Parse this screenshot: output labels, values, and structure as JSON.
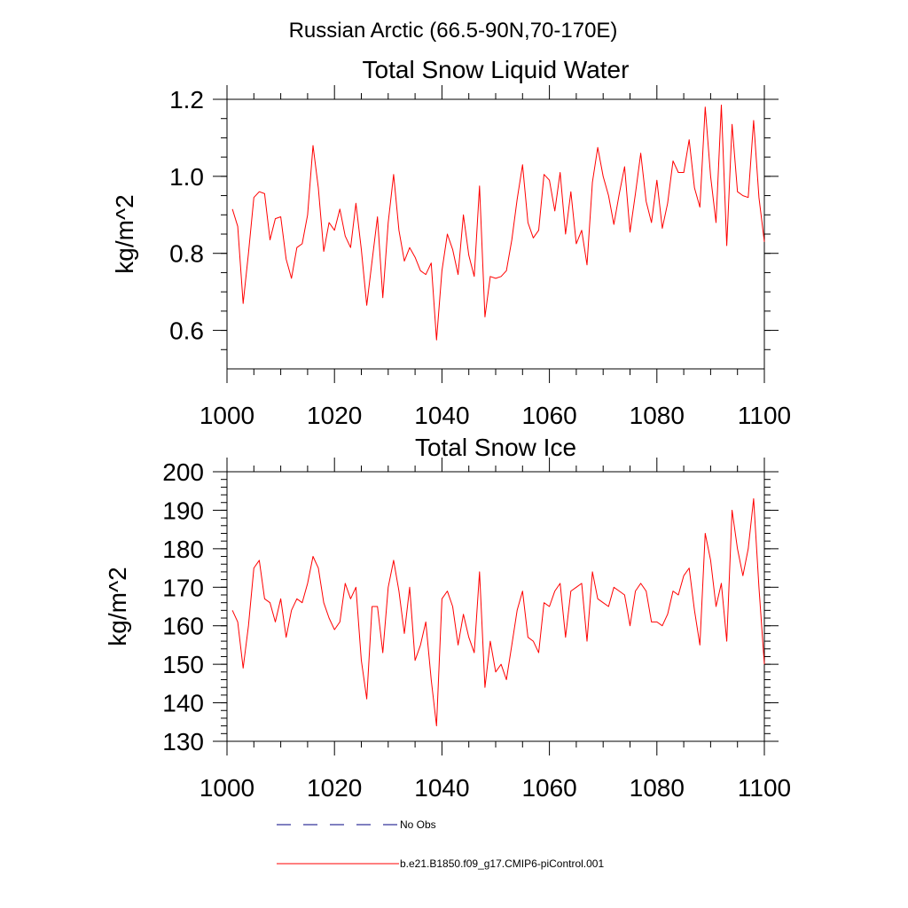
{
  "page": {
    "title": "Russian Arctic (66.5-90N,70-170E)"
  },
  "colors": {
    "series": "#ff0000",
    "obs": "#000080",
    "axes": "#000000"
  },
  "chart_data": [
    {
      "type": "line",
      "title": "Total Snow Liquid Water",
      "xlabel": "",
      "ylabel": "kg/m^2",
      "xlim": [
        1000,
        1100
      ],
      "ylim": [
        0.5,
        1.2
      ],
      "xticks": [
        1000,
        1020,
        1040,
        1060,
        1080,
        1100
      ],
      "xtick_labels": [
        "1000",
        "1020",
        "1040",
        "1060",
        "1080",
        "1100"
      ],
      "yticks": [
        0.6,
        0.8,
        1.0,
        1.2
      ],
      "ytick_labels": [
        "0.6",
        "0.8",
        "1.0",
        "1.2"
      ],
      "grid": false,
      "x": [
        1001,
        1002,
        1003,
        1004,
        1005,
        1006,
        1007,
        1008,
        1009,
        1010,
        1011,
        1012,
        1013,
        1014,
        1015,
        1016,
        1017,
        1018,
        1019,
        1020,
        1021,
        1022,
        1023,
        1024,
        1025,
        1026,
        1027,
        1028,
        1029,
        1030,
        1031,
        1032,
        1033,
        1034,
        1035,
        1036,
        1037,
        1038,
        1039,
        1040,
        1041,
        1042,
        1043,
        1044,
        1045,
        1046,
        1047,
        1048,
        1049,
        1050,
        1051,
        1052,
        1053,
        1054,
        1055,
        1056,
        1057,
        1058,
        1059,
        1060,
        1061,
        1062,
        1063,
        1064,
        1065,
        1066,
        1067,
        1068,
        1069,
        1070,
        1071,
        1072,
        1073,
        1074,
        1075,
        1076,
        1077,
        1078,
        1079,
        1080,
        1081,
        1082,
        1083,
        1084,
        1085,
        1086,
        1087,
        1088,
        1089,
        1090,
        1091,
        1092,
        1093,
        1094,
        1095,
        1096,
        1097,
        1098,
        1099,
        1100
      ],
      "series": [
        {
          "name": "b.e21.B1850.f09_g17.CMIP6-piControl.001",
          "values": [
            0.915,
            0.87,
            0.67,
            0.8,
            0.945,
            0.96,
            0.955,
            0.835,
            0.89,
            0.895,
            0.785,
            0.735,
            0.815,
            0.825,
            0.9,
            1.08,
            0.97,
            0.805,
            0.88,
            0.86,
            0.915,
            0.845,
            0.815,
            0.93,
            0.81,
            0.665,
            0.78,
            0.895,
            0.685,
            0.88,
            1.005,
            0.86,
            0.78,
            0.815,
            0.79,
            0.755,
            0.745,
            0.775,
            0.575,
            0.755,
            0.85,
            0.81,
            0.745,
            0.9,
            0.795,
            0.74,
            0.975,
            0.635,
            0.74,
            0.735,
            0.74,
            0.755,
            0.835,
            0.94,
            1.03,
            0.88,
            0.84,
            0.86,
            1.005,
            0.99,
            0.91,
            1.01,
            0.85,
            0.96,
            0.825,
            0.86,
            0.77,
            0.985,
            1.075,
            1.0,
            0.95,
            0.875,
            0.955,
            1.025,
            0.855,
            0.955,
            1.06,
            0.935,
            0.88,
            0.99,
            0.865,
            0.93,
            1.04,
            1.01,
            1.01,
            1.095,
            0.97,
            0.92,
            1.18,
            1.0,
            0.88,
            1.185,
            0.82,
            1.135,
            0.96,
            0.95,
            0.945,
            1.145,
            0.945,
            0.83
          ]
        }
      ]
    },
    {
      "type": "line",
      "title": "Total Snow Ice",
      "xlabel": "",
      "ylabel": "kg/m^2",
      "xlim": [
        1000,
        1100
      ],
      "ylim": [
        130,
        200
      ],
      "xticks": [
        1000,
        1020,
        1040,
        1060,
        1080,
        1100
      ],
      "xtick_labels": [
        "1000",
        "1020",
        "1040",
        "1060",
        "1080",
        "1100"
      ],
      "yticks": [
        130,
        140,
        150,
        160,
        170,
        180,
        190,
        200
      ],
      "ytick_labels": [
        "130",
        "140",
        "150",
        "160",
        "170",
        "180",
        "190",
        "200"
      ],
      "grid": false,
      "x": [
        1001,
        1002,
        1003,
        1004,
        1005,
        1006,
        1007,
        1008,
        1009,
        1010,
        1011,
        1012,
        1013,
        1014,
        1015,
        1016,
        1017,
        1018,
        1019,
        1020,
        1021,
        1022,
        1023,
        1024,
        1025,
        1026,
        1027,
        1028,
        1029,
        1030,
        1031,
        1032,
        1033,
        1034,
        1035,
        1036,
        1037,
        1038,
        1039,
        1040,
        1041,
        1042,
        1043,
        1044,
        1045,
        1046,
        1047,
        1048,
        1049,
        1050,
        1051,
        1052,
        1053,
        1054,
        1055,
        1056,
        1057,
        1058,
        1059,
        1060,
        1061,
        1062,
        1063,
        1064,
        1065,
        1066,
        1067,
        1068,
        1069,
        1070,
        1071,
        1072,
        1073,
        1074,
        1075,
        1076,
        1077,
        1078,
        1079,
        1080,
        1081,
        1082,
        1083,
        1084,
        1085,
        1086,
        1087,
        1088,
        1089,
        1090,
        1091,
        1092,
        1093,
        1094,
        1095,
        1096,
        1097,
        1098,
        1099,
        1100
      ],
      "series": [
        {
          "name": "b.e21.B1850.f09_g17.CMIP6-piControl.001",
          "values": [
            164,
            161,
            149,
            160,
            175,
            177,
            167,
            166,
            161,
            167,
            157,
            164,
            167,
            166,
            171,
            178,
            175,
            166,
            162,
            159,
            161,
            171,
            167,
            170,
            151,
            141,
            165,
            165,
            153,
            170,
            177,
            169,
            158,
            170,
            151,
            155,
            161,
            146,
            134,
            167,
            169,
            165,
            155,
            163,
            157,
            153,
            174,
            144,
            156,
            148,
            150,
            146,
            155,
            164,
            169,
            157,
            156,
            153,
            166,
            165,
            169,
            171,
            157,
            169,
            170,
            171,
            156,
            174,
            167,
            166,
            165,
            170,
            169,
            168,
            160,
            169,
            171,
            169,
            161,
            161,
            160,
            163,
            169,
            168,
            173,
            175,
            164,
            155,
            184,
            177,
            165,
            171,
            156,
            190,
            180,
            173,
            180,
            193,
            170,
            150
          ]
        }
      ]
    }
  ],
  "legend": {
    "placement": "bottom",
    "entries": [
      {
        "label": "No Obs",
        "color": "#000080",
        "dash": true
      },
      {
        "label": "b.e21.B1850.f09_g17.CMIP6-piControl.001",
        "color": "#ff0000",
        "dash": false
      }
    ]
  }
}
